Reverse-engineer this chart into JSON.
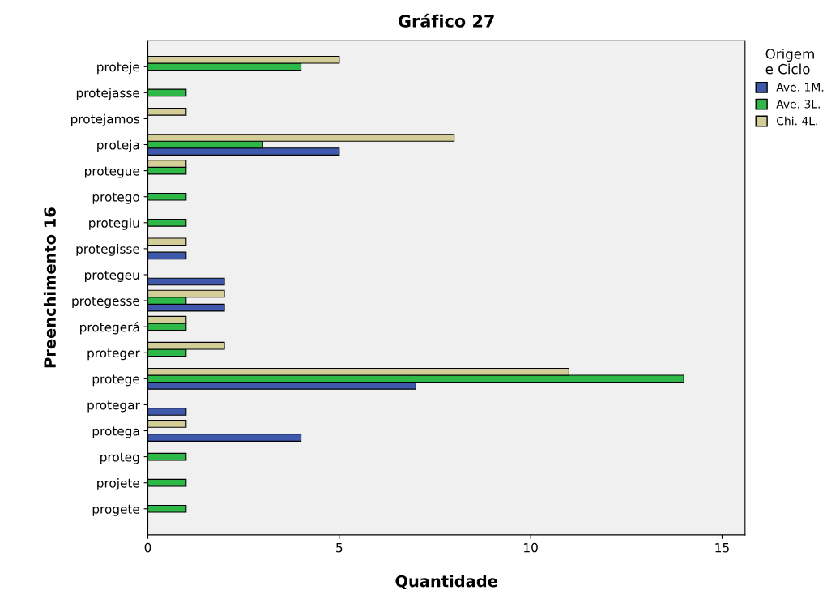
{
  "chart_data": {
    "type": "bar",
    "orientation": "horizontal",
    "title": "Gráfico 27",
    "xlabel": "Quantidade",
    "ylabel": "Preenchimento 16",
    "legend_title": "Origem\ne Ciclo",
    "legend": "top right",
    "grid": false,
    "categories": [
      "proteje",
      "protejasse",
      "protejamos",
      "proteja",
      "protegue",
      "protego",
      "protegiu",
      "protegisse",
      "protegeu",
      "protegesse",
      "protegerá",
      "proteger",
      "protege",
      "protegar",
      "protega",
      "proteg",
      "projete",
      "progete"
    ],
    "series": [
      {
        "name": "Ave. 1M.",
        "color": "#3e58ac",
        "values": [
          null,
          null,
          null,
          5,
          null,
          null,
          null,
          1,
          2,
          2,
          null,
          null,
          7,
          1,
          4,
          null,
          null,
          null
        ]
      },
      {
        "name": "Ave. 3L.",
        "color": "#2eb848",
        "values": [
          4,
          1,
          null,
          3,
          1,
          1,
          1,
          null,
          null,
          1,
          1,
          1,
          14,
          null,
          null,
          1,
          1,
          1
        ]
      },
      {
        "name": "Chi. 4L.",
        "color": "#d3ce97",
        "values": [
          5,
          null,
          1,
          8,
          1,
          null,
          null,
          1,
          null,
          2,
          1,
          2,
          11,
          null,
          1,
          null,
          null,
          null
        ]
      }
    ],
    "xlim": [
      0,
      15.6
    ],
    "xticks": [
      0,
      5,
      10,
      15
    ]
  }
}
